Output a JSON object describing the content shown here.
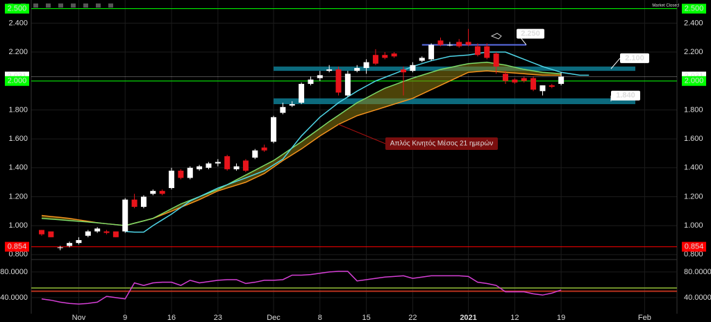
{
  "chart_data": {
    "type": "candlestick",
    "status": "Market Closed",
    "categories": [
      null,
      null,
      null,
      null,
      "Nov",
      null,
      null,
      null,
      null,
      "9",
      null,
      null,
      null,
      null,
      "16",
      null,
      null,
      null,
      null,
      "23",
      null,
      null,
      null,
      null,
      null,
      "Dec",
      null,
      null,
      null,
      null,
      "8",
      null,
      null,
      null,
      null,
      "15",
      null,
      null,
      null,
      null,
      "22",
      null,
      null,
      null,
      null,
      null,
      "2021",
      null,
      null,
      null,
      null,
      "12",
      null,
      null,
      null,
      null,
      "19",
      null,
      null,
      null,
      null,
      null,
      null,
      null,
      null,
      "Feb"
    ],
    "open": [
      0.97,
      0.96,
      0.85,
      0.86,
      0.88,
      0.93,
      0.96,
      0.96,
      0.96,
      0.96,
      1.18,
      1.13,
      1.22,
      1.24,
      1.26,
      1.38,
      1.33,
      1.39,
      1.4,
      1.43,
      1.48,
      1.39,
      1.45,
      1.47,
      1.54,
      1.58,
      1.78,
      1.83,
      1.85,
      1.98,
      2.02,
      2.07,
      2.08,
      1.9,
      2.07,
      2.09,
      2.18,
      2.18,
      2.19,
      2.08,
      2.07,
      2.14,
      2.15,
      2.28,
      2.25,
      2.27,
      2.27,
      2.24,
      2.24,
      2.19,
      2.05,
      2.01,
      2.02,
      2.02,
      1.93,
      1.97,
      1.98,
      null,
      null,
      null,
      null,
      null,
      null,
      null,
      null,
      null
    ],
    "high": [
      0.97,
      0.96,
      0.86,
      0.89,
      0.92,
      0.97,
      0.99,
      0.97,
      0.96,
      1.19,
      1.22,
      1.21,
      1.25,
      1.25,
      1.4,
      1.39,
      1.41,
      1.42,
      1.44,
      1.46,
      1.49,
      1.43,
      1.46,
      1.53,
      1.56,
      1.76,
      1.85,
      1.86,
      1.99,
      2.03,
      2.07,
      2.11,
      2.1,
      2.07,
      2.11,
      2.15,
      2.22,
      2.2,
      2.2,
      2.1,
      2.13,
      2.17,
      2.26,
      2.3,
      2.27,
      2.29,
      2.36,
      2.26,
      2.26,
      2.2,
      2.07,
      2.02,
      2.03,
      2.03,
      1.97,
      1.98,
      2.06,
      null,
      null,
      null,
      null,
      null,
      null,
      null,
      null,
      null
    ],
    "low": [
      0.93,
      0.92,
      0.83,
      0.85,
      0.87,
      0.92,
      0.95,
      0.94,
      0.92,
      0.95,
      1.12,
      1.12,
      1.21,
      1.21,
      1.25,
      1.32,
      1.32,
      1.38,
      1.39,
      1.41,
      1.38,
      1.38,
      1.37,
      1.46,
      1.51,
      1.57,
      1.77,
      1.82,
      1.84,
      1.97,
      2.0,
      2.06,
      1.9,
      1.89,
      2.06,
      2.05,
      2.11,
      2.15,
      2.16,
      1.9,
      2.06,
      2.13,
      2.14,
      2.24,
      2.24,
      2.23,
      2.24,
      2.17,
      2.15,
      2.05,
      1.98,
      1.98,
      1.99,
      1.93,
      1.9,
      1.95,
      1.97,
      null,
      null,
      null,
      null,
      null,
      null,
      null,
      null,
      null
    ],
    "close": [
      0.94,
      0.92,
      0.85,
      0.88,
      0.9,
      0.96,
      0.98,
      0.95,
      0.92,
      1.18,
      1.13,
      1.2,
      1.24,
      1.22,
      1.38,
      1.33,
      1.4,
      1.41,
      1.43,
      1.44,
      1.39,
      1.41,
      1.38,
      1.52,
      1.52,
      1.75,
      1.82,
      1.84,
      1.98,
      2.01,
      2.04,
      2.08,
      1.92,
      2.05,
      2.09,
      2.13,
      2.12,
      2.16,
      2.17,
      2.06,
      2.11,
      2.16,
      2.25,
      2.25,
      2.25,
      2.24,
      2.25,
      2.18,
      2.16,
      2.1,
      2.0,
      1.99,
      2.0,
      1.94,
      1.97,
      1.96,
      2.03,
      null,
      null,
      null,
      null,
      null,
      null,
      null,
      null,
      null
    ],
    "up_color": "#ffffff",
    "down_color": "#e8141b",
    "lines": [
      {
        "color": "#f7931e",
        "values": [
          1.07,
          1.063,
          1.057,
          1.05,
          1.04,
          1.03,
          1.02,
          1.013,
          1.007,
          1.0,
          1.017,
          1.033,
          1.05,
          1.075,
          1.1,
          1.127,
          1.153,
          1.18,
          1.21,
          1.24,
          1.26,
          1.28,
          1.3,
          1.33,
          1.36,
          1.405,
          1.45,
          1.49,
          1.53,
          1.575,
          1.62,
          1.66,
          1.7,
          1.73,
          1.76,
          1.78,
          1.8,
          1.82,
          1.84,
          1.86,
          1.88,
          1.91,
          1.94,
          1.97,
          2.0,
          2.03,
          2.06,
          2.065,
          2.07,
          2.065,
          2.06,
          2.055,
          2.05,
          2.045,
          2.04,
          2.04,
          2.04,
          null,
          null,
          null,
          null,
          null,
          null,
          null,
          null,
          null
        ]
      },
      {
        "color": "#7ddc6a",
        "values": [
          1.05,
          1.045,
          1.04,
          1.035,
          1.03,
          1.025,
          1.02,
          1.013,
          1.007,
          1.0,
          1.017,
          1.033,
          1.05,
          1.083,
          1.117,
          1.15,
          1.175,
          1.2,
          1.225,
          1.25,
          1.283,
          1.317,
          1.35,
          1.383,
          1.417,
          1.45,
          1.493,
          1.537,
          1.58,
          1.627,
          1.673,
          1.72,
          1.763,
          1.807,
          1.85,
          1.883,
          1.917,
          1.95,
          1.973,
          1.997,
          2.02,
          2.04,
          2.06,
          2.08,
          2.093,
          2.107,
          2.12,
          2.125,
          2.13,
          2.12,
          2.11,
          2.095,
          2.08,
          2.07,
          2.06,
          2.055,
          2.05,
          null,
          null,
          null,
          null,
          null,
          null,
          null,
          null,
          null
        ]
      },
      {
        "color": "#4fd6e8",
        "values": [
          null,
          null,
          null,
          null,
          null,
          null,
          null,
          null,
          null,
          0.96,
          0.955,
          0.955,
          1.0,
          1.04,
          1.08,
          1.125,
          1.17,
          1.2,
          1.23,
          1.26,
          1.283,
          1.307,
          1.33,
          1.355,
          1.38,
          1.42,
          1.46,
          1.54,
          1.62,
          1.685,
          1.75,
          1.8,
          1.85,
          1.89,
          1.93,
          1.965,
          2.0,
          2.025,
          2.05,
          2.075,
          2.1,
          2.12,
          2.14,
          2.155,
          2.17,
          2.175,
          2.18,
          2.19,
          2.2,
          2.2,
          2.2,
          2.175,
          2.15,
          2.125,
          2.1,
          2.08,
          2.06,
          2.05,
          2.04,
          2.04,
          null,
          null,
          null,
          null,
          null,
          null
        ]
      }
    ],
    "ylim": [
      0.78,
      2.56
    ],
    "yticks": [
      {
        "value": 0.8,
        "label": "0.800"
      },
      {
        "value": 1.0,
        "label": "1.000"
      },
      {
        "value": 1.2,
        "label": "1.200"
      },
      {
        "value": 1.4,
        "label": "1.400"
      },
      {
        "value": 1.6,
        "label": "1.600"
      },
      {
        "value": 1.8,
        "label": "1.800"
      },
      {
        "value": 2.0,
        "label": "2.000"
      },
      {
        "value": 2.2,
        "label": "2.200"
      },
      {
        "value": 2.4,
        "label": "2.400"
      }
    ],
    "levels": [
      {
        "value": 2.5,
        "label": "2.500",
        "color": "#00ff00",
        "text_color": "#000000"
      },
      {
        "value": 2.031,
        "label": "2.031",
        "color": "#ffffff",
        "text_color": "#000000"
      },
      {
        "value": 2.0,
        "label": "2.000",
        "color": "#00ff00",
        "text_color": "#000000"
      },
      {
        "value": 0.854,
        "label": "0.854",
        "color": "#ff0000",
        "text_color": "#ffffff"
      }
    ],
    "zones": [
      {
        "low": 2.07,
        "high": 2.1,
        "label": "2.100",
        "color": "#0e7c93"
      },
      {
        "low": 1.84,
        "high": 1.88,
        "label": "1.840",
        "color": "#0e7c93"
      }
    ],
    "marker_line": {
      "value": 2.25,
      "label": "2.250",
      "color": "#5b6ee8"
    },
    "annotation": "Απλός Κινητός Μέσος 21 ημερών",
    "indicator": {
      "color": "#d63fd6",
      "values": [
        38,
        36,
        33,
        31,
        30,
        31,
        33,
        42,
        40,
        38,
        63,
        59,
        63,
        64,
        64,
        59,
        67,
        63,
        65,
        67,
        68,
        68,
        62,
        64,
        67,
        67,
        68,
        75,
        75,
        76,
        78,
        80,
        81,
        81,
        66,
        68,
        70,
        72,
        73,
        74,
        70,
        72,
        74,
        74,
        74,
        74,
        73,
        64,
        62,
        59,
        49,
        49,
        49,
        46,
        44,
        47,
        52,
        null,
        null,
        null,
        null,
        null,
        null,
        null,
        null,
        null
      ],
      "ylim": [
        15,
        95
      ],
      "yticks": [
        {
          "value": 40,
          "label": "40.0000"
        },
        {
          "value": 80,
          "label": "80.0000"
        }
      ],
      "levels": [
        {
          "value": 55,
          "color": "#6f8f2a"
        },
        {
          "value": 50,
          "color": "#b8321e"
        }
      ]
    }
  }
}
